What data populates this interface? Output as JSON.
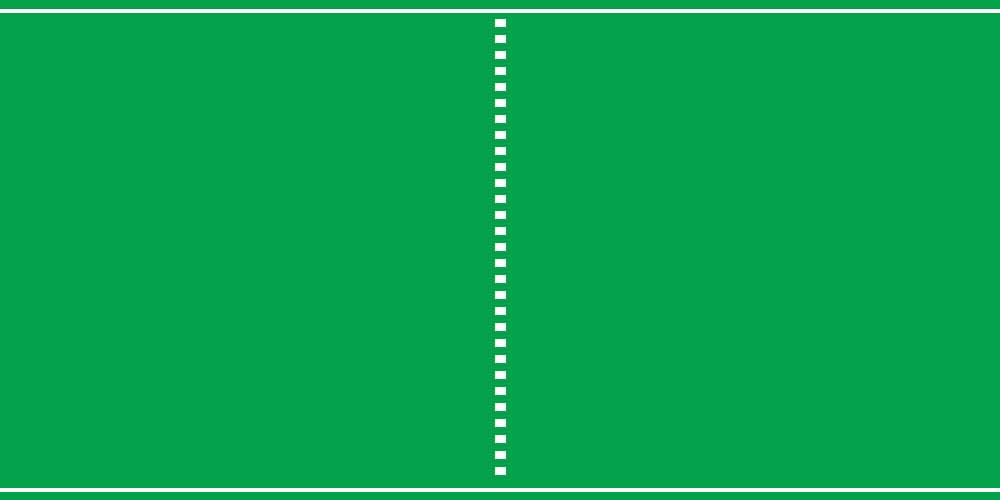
{
  "scene": {
    "colors": {
      "background": "#03a14a",
      "lines": "#ffffff"
    }
  }
}
